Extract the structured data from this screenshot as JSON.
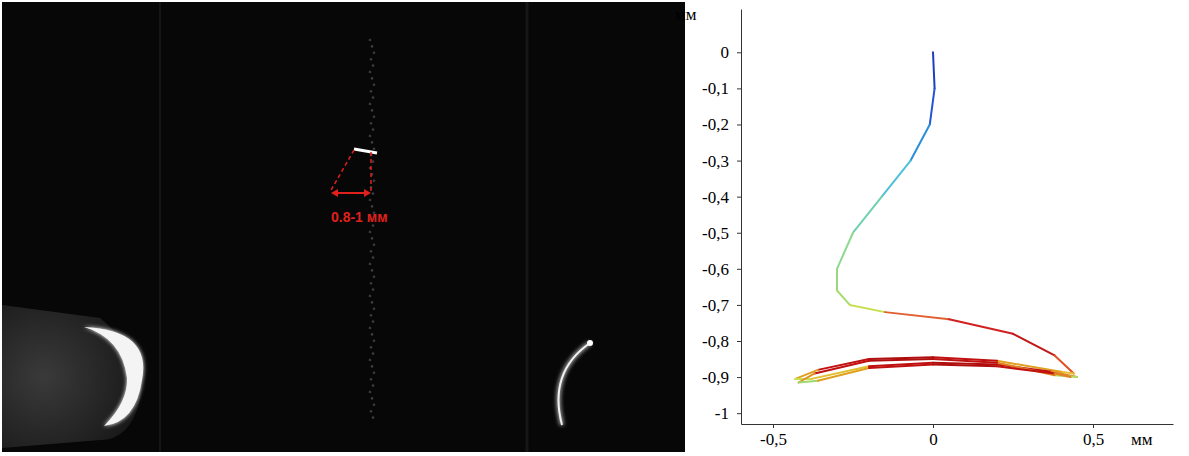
{
  "photo": {
    "annotation": "0.8-1 мм"
  },
  "chart_data": {
    "type": "line",
    "xlabel": "мм",
    "ylabel": "мм",
    "xlim": [
      -0.6,
      0.75
    ],
    "ylim": [
      -1.03,
      0.12
    ],
    "xticks": [
      {
        "value": -0.5,
        "label": "-0,5"
      },
      0,
      {
        "value": 0.5,
        "label": "0,5"
      }
    ],
    "yticks": [
      0,
      {
        "value": -0.1,
        "label": "-0,1"
      },
      {
        "value": -0.2,
        "label": "-0,2"
      },
      {
        "value": -0.3,
        "label": "-0,3"
      },
      {
        "value": -0.4,
        "label": "-0,4"
      },
      {
        "value": -0.5,
        "label": "-0,5"
      },
      {
        "value": -0.6,
        "label": "-0,6"
      },
      {
        "value": -0.7,
        "label": "-0,7"
      },
      {
        "value": -0.8,
        "label": "-0,8"
      },
      {
        "value": -0.9,
        "label": "-0,9"
      },
      -1
    ],
    "grid": false,
    "series": [
      {
        "x": [
          0,
          0.005,
          -0.01,
          -0.07,
          -0.16,
          -0.25,
          -0.3,
          -0.3,
          -0.26,
          -0.15,
          0.05,
          0.25,
          0.38,
          0.44,
          0.4,
          0.2,
          0,
          -0.2,
          -0.36,
          -0.43,
          -0.38,
          -0.2,
          0,
          0.2,
          0.37,
          0.45,
          0.38,
          0.2,
          0,
          -0.2,
          -0.37,
          -0.42,
          -0.36,
          -0.2,
          0,
          0.2,
          0.38,
          0.43
        ],
        "values": [
          0,
          -0.1,
          -0.2,
          -0.3,
          -0.4,
          -0.5,
          -0.6,
          -0.66,
          -0.7,
          -0.72,
          -0.74,
          -0.78,
          -0.84,
          -0.89,
          -0.885,
          -0.855,
          -0.845,
          -0.85,
          -0.88,
          -0.905,
          -0.905,
          -0.87,
          -0.86,
          -0.865,
          -0.885,
          -0.9,
          -0.895,
          -0.86,
          -0.85,
          -0.855,
          -0.89,
          -0.915,
          -0.91,
          -0.875,
          -0.865,
          -0.87,
          -0.89,
          -0.9
        ],
        "colors": [
          "#1f3fbf",
          "#2255d0",
          "#2a8fd8",
          "#4fc0d8",
          "#70d0b0",
          "#8fd890",
          "#9ad880",
          "#a8dc70",
          "#c8e050",
          "#e06030",
          "#d02020",
          "#c01818",
          "#e05020",
          "#e8c030",
          "#e0a020",
          "#c01010",
          "#b00d0d",
          "#c01010",
          "#e0a020",
          "#c8e050",
          "#e0c030",
          "#c01010",
          "#b00d0d",
          "#c01010",
          "#e08020",
          "#b0dc60",
          "#e08020",
          "#c01010",
          "#b00d0d",
          "#c01010",
          "#e09020",
          "#a0d870",
          "#e0a020",
          "#c01010",
          "#b00d0d",
          "#c01010",
          "#e08020",
          "#c0dc50"
        ]
      }
    ]
  }
}
